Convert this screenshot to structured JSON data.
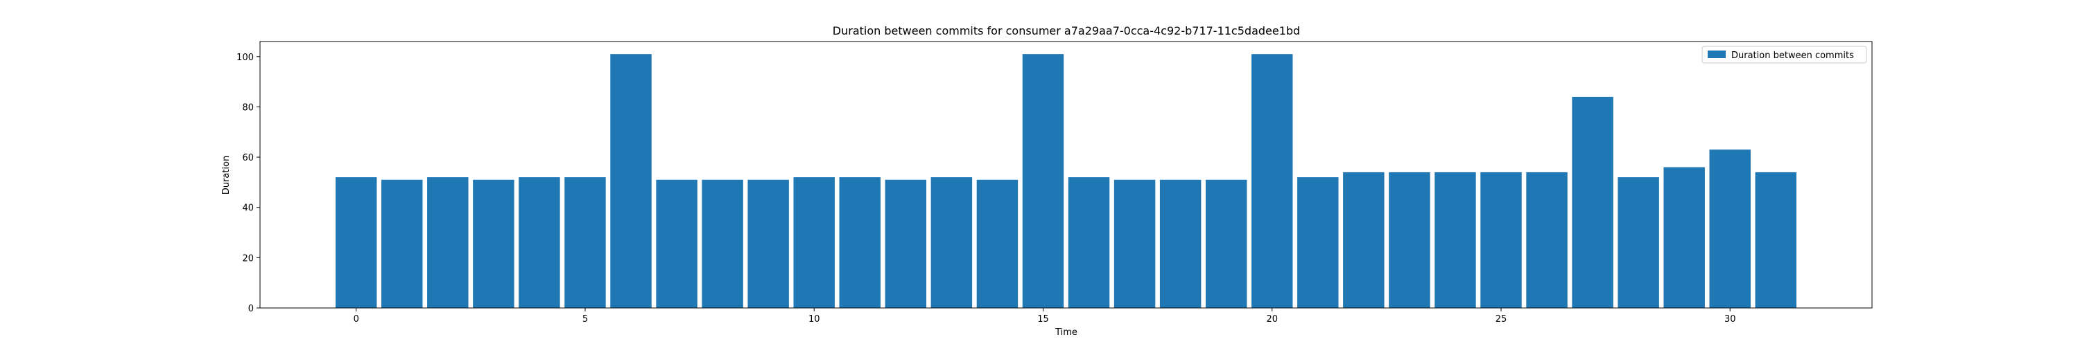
{
  "chart_data": {
    "type": "bar",
    "title": "Duration between commits for consumer a7a29aa7-0cca-4c92-b717-11c5dadee1bd",
    "xlabel": "Time",
    "ylabel": "Duration",
    "xlim": [
      -2.1,
      33.1
    ],
    "ylim": [
      0,
      106
    ],
    "xticks": [
      0,
      5,
      10,
      15,
      20,
      25,
      30
    ],
    "yticks": [
      0,
      20,
      40,
      60,
      80,
      100
    ],
    "grid": false,
    "legend_position": "top-right",
    "bar_width": 0.9,
    "series": [
      {
        "name": "Duration between commits",
        "color": "#1f77b4",
        "x": [
          0,
          1,
          2,
          3,
          4,
          5,
          6,
          7,
          8,
          9,
          10,
          11,
          12,
          13,
          14,
          15,
          16,
          17,
          18,
          19,
          20,
          21,
          22,
          23,
          24,
          25,
          26,
          27,
          28,
          29,
          30,
          31
        ],
        "values": [
          52,
          51,
          52,
          51,
          52,
          52,
          101,
          51,
          51,
          51,
          52,
          52,
          51,
          52,
          51,
          101,
          52,
          51,
          51,
          51,
          101,
          52,
          54,
          54,
          54,
          54,
          54,
          84,
          52,
          56,
          63,
          54
        ]
      }
    ]
  }
}
